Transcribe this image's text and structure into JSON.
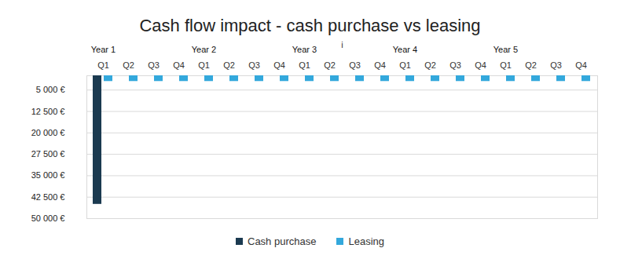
{
  "chart_data": {
    "type": "bar",
    "title": "Cash flow impact - cash purchase vs leasing",
    "categories": [
      "Q1",
      "Q2",
      "Q3",
      "Q4",
      "Q1",
      "Q2",
      "Q3",
      "Q4",
      "Q1",
      "Q2",
      "Q3",
      "Q4",
      "Q1",
      "Q2",
      "Q3",
      "Q4",
      "Q1",
      "Q2",
      "Q3",
      "Q4"
    ],
    "category_groups": [
      "Year 1",
      null,
      null,
      null,
      "Year 2",
      null,
      null,
      null,
      "Year 3",
      null,
      null,
      null,
      "Year 4",
      null,
      null,
      null,
      "Year 5",
      null,
      null,
      null
    ],
    "series": [
      {
        "name": "Cash purchase",
        "color": "#1b3a50",
        "values": [
          45000,
          null,
          null,
          null,
          null,
          null,
          null,
          null,
          null,
          null,
          null,
          null,
          null,
          null,
          null,
          null,
          null,
          null,
          null,
          null
        ]
      },
      {
        "name": "Leasing",
        "color": "#33a8dc",
        "values": [
          2000,
          2000,
          2000,
          2000,
          2000,
          2000,
          2000,
          2000,
          2000,
          2000,
          2000,
          2000,
          2000,
          2000,
          2000,
          2000,
          2000,
          2000,
          2000,
          2000
        ]
      }
    ],
    "ylim": [
      0,
      50000
    ],
    "yticks": [
      {
        "value": 5000,
        "label": "5 000 €"
      },
      {
        "value": 12500,
        "label": "12 500 €"
      },
      {
        "value": 20000,
        "label": "20 000 €"
      },
      {
        "value": 27500,
        "label": "27 500 €"
      },
      {
        "value": 35000,
        "label": "35 000 €"
      },
      {
        "value": 42500,
        "label": "42 500 €"
      },
      {
        "value": 50000,
        "label": "50 000 €"
      }
    ],
    "grid": true,
    "legend": "bottom"
  }
}
